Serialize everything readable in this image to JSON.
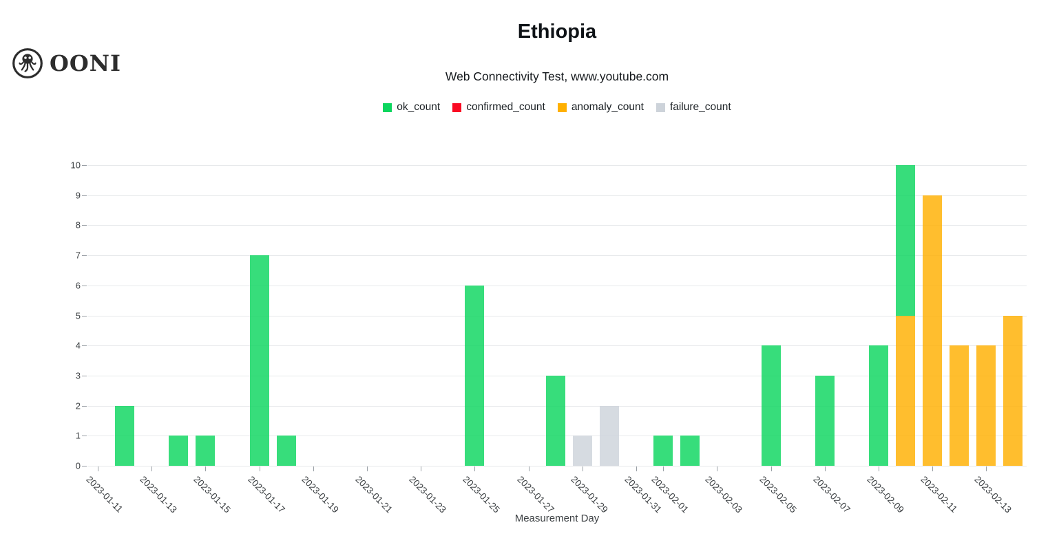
{
  "logo": {
    "text": "OONI",
    "icon": "ooni-octopus-icon",
    "color": "#2d2d2d"
  },
  "chart_data": {
    "type": "bar",
    "stacked": true,
    "title": "Ethiopia",
    "subtitle": "Web Connectivity Test, www.youtube.com",
    "xlabel": "Measurement Day",
    "ylabel": "",
    "ylim": [
      0,
      10
    ],
    "y_ticks": [
      0,
      1,
      2,
      3,
      4,
      5,
      6,
      7,
      8,
      9,
      10
    ],
    "grid": true,
    "legend_position": "top-center",
    "series": [
      {
        "name": "ok_count",
        "color": "#0bd65e"
      },
      {
        "name": "confirmed_count",
        "color": "#fa0a23"
      },
      {
        "name": "anomaly_count",
        "color": "#ffb000"
      },
      {
        "name": "failure_count",
        "color": "#cdd3da"
      }
    ],
    "x_ticks": [
      {
        "label": "2023-01-11",
        "day": 0
      },
      {
        "label": "2023-01-13",
        "day": 2
      },
      {
        "label": "2023-01-15",
        "day": 4
      },
      {
        "label": "2023-01-17",
        "day": 6
      },
      {
        "label": "2023-01-19",
        "day": 8
      },
      {
        "label": "2023-01-21",
        "day": 10
      },
      {
        "label": "2023-01-23",
        "day": 12
      },
      {
        "label": "2023-01-25",
        "day": 14
      },
      {
        "label": "2023-01-27",
        "day": 16
      },
      {
        "label": "2023-01-29",
        "day": 18
      },
      {
        "label": "2023-01-31",
        "day": 20
      },
      {
        "label": "2023-02-01",
        "day": 21
      },
      {
        "label": "2023-02-03",
        "day": 23
      },
      {
        "label": "2023-02-05",
        "day": 25
      },
      {
        "label": "2023-02-07",
        "day": 27
      },
      {
        "label": "2023-02-09",
        "day": 29
      },
      {
        "label": "2023-02-11",
        "day": 31
      },
      {
        "label": "2023-02-13",
        "day": 33
      }
    ],
    "bars": [
      {
        "date": "2023-01-12",
        "day": 1,
        "segments": [
          {
            "series": "ok_count",
            "value": 2
          }
        ]
      },
      {
        "date": "2023-01-14",
        "day": 3,
        "segments": [
          {
            "series": "ok_count",
            "value": 1
          }
        ]
      },
      {
        "date": "2023-01-15",
        "day": 4,
        "segments": [
          {
            "series": "ok_count",
            "value": 1
          }
        ]
      },
      {
        "date": "2023-01-17",
        "day": 6,
        "segments": [
          {
            "series": "ok_count",
            "value": 7
          }
        ]
      },
      {
        "date": "2023-01-18",
        "day": 7,
        "segments": [
          {
            "series": "ok_count",
            "value": 1
          }
        ]
      },
      {
        "date": "2023-01-25",
        "day": 14,
        "segments": [
          {
            "series": "ok_count",
            "value": 6
          }
        ]
      },
      {
        "date": "2023-01-28",
        "day": 17,
        "segments": [
          {
            "series": "ok_count",
            "value": 3
          }
        ]
      },
      {
        "date": "2023-01-29",
        "day": 18,
        "segments": [
          {
            "series": "failure_count",
            "value": 1
          }
        ]
      },
      {
        "date": "2023-01-30",
        "day": 19,
        "segments": [
          {
            "series": "failure_count",
            "value": 2
          }
        ]
      },
      {
        "date": "2023-02-01",
        "day": 21,
        "segments": [
          {
            "series": "ok_count",
            "value": 1
          }
        ]
      },
      {
        "date": "2023-02-02",
        "day": 22,
        "segments": [
          {
            "series": "ok_count",
            "value": 1
          }
        ]
      },
      {
        "date": "2023-02-05",
        "day": 25,
        "segments": [
          {
            "series": "ok_count",
            "value": 4
          }
        ]
      },
      {
        "date": "2023-02-07",
        "day": 27,
        "segments": [
          {
            "series": "ok_count",
            "value": 3
          }
        ]
      },
      {
        "date": "2023-02-09",
        "day": 29,
        "segments": [
          {
            "series": "ok_count",
            "value": 4
          }
        ]
      },
      {
        "date": "2023-02-10",
        "day": 30,
        "segments": [
          {
            "series": "anomaly_count",
            "value": 5
          },
          {
            "series": "ok_count",
            "value": 5
          }
        ]
      },
      {
        "date": "2023-02-11",
        "day": 31,
        "segments": [
          {
            "series": "anomaly_count",
            "value": 9
          }
        ]
      },
      {
        "date": "2023-02-12",
        "day": 32,
        "segments": [
          {
            "series": "anomaly_count",
            "value": 4
          }
        ]
      },
      {
        "date": "2023-02-13",
        "day": 33,
        "segments": [
          {
            "series": "anomaly_count",
            "value": 4
          }
        ]
      },
      {
        "date": "2023-02-14",
        "day": 34,
        "segments": [
          {
            "series": "anomaly_count",
            "value": 5
          }
        ]
      }
    ]
  }
}
